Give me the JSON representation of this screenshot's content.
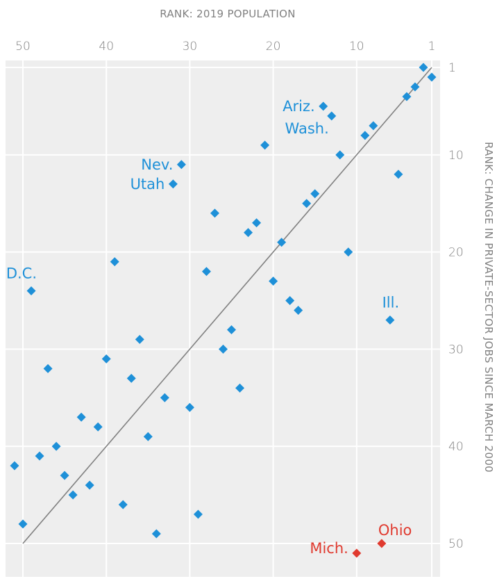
{
  "chart_data": {
    "type": "scatter",
    "title": "",
    "xlabel": "RANK: 2019 POPULATION",
    "ylabel": "RANK: CHANGE IN PRIVATE-SECTOR JOBS SINCE MARCH 2000",
    "xlim": [
      51.5,
      0.5
    ],
    "ylim": [
      0.5,
      51.5
    ],
    "x_ticks": [
      "50",
      "40",
      "30",
      "20",
      "10",
      "1"
    ],
    "y_ticks": [
      "1",
      "10",
      "20",
      "30",
      "40",
      "50"
    ],
    "grid": true,
    "reference_line": {
      "from": [
        50,
        50
      ],
      "to": [
        1,
        1
      ]
    },
    "colors": {
      "default": "#1e90d8",
      "highlight": "#e03a2f",
      "line": "#808080",
      "background": "#eeeeee",
      "grid": "#ffffff"
    },
    "points": [
      {
        "x": 2,
        "y": 1
      },
      {
        "x": 1,
        "y": 2
      },
      {
        "x": 3,
        "y": 3
      },
      {
        "x": 4,
        "y": 4
      },
      {
        "x": 14,
        "y": 5,
        "label": "Ariz."
      },
      {
        "x": 13,
        "y": 6,
        "label": "Wash."
      },
      {
        "x": 8,
        "y": 7
      },
      {
        "x": 9,
        "y": 8
      },
      {
        "x": 21,
        "y": 9
      },
      {
        "x": 12,
        "y": 10
      },
      {
        "x": 31,
        "y": 11,
        "label": "Nev."
      },
      {
        "x": 5,
        "y": 12
      },
      {
        "x": 32,
        "y": 13,
        "label": "Utah"
      },
      {
        "x": 15,
        "y": 14
      },
      {
        "x": 16,
        "y": 15
      },
      {
        "x": 27,
        "y": 16
      },
      {
        "x": 22,
        "y": 17
      },
      {
        "x": 23,
        "y": 18
      },
      {
        "x": 19,
        "y": 19
      },
      {
        "x": 11,
        "y": 20
      },
      {
        "x": 39,
        "y": 21
      },
      {
        "x": 28,
        "y": 22
      },
      {
        "x": 20,
        "y": 23
      },
      {
        "x": 49,
        "y": 24,
        "label": "D.C."
      },
      {
        "x": 18,
        "y": 25
      },
      {
        "x": 17,
        "y": 26
      },
      {
        "x": 6,
        "y": 27,
        "label": "Ill."
      },
      {
        "x": 25,
        "y": 28
      },
      {
        "x": 36,
        "y": 29
      },
      {
        "x": 26,
        "y": 30
      },
      {
        "x": 40,
        "y": 31
      },
      {
        "x": 47,
        "y": 32
      },
      {
        "x": 37,
        "y": 33
      },
      {
        "x": 24,
        "y": 34
      },
      {
        "x": 33,
        "y": 35
      },
      {
        "x": 30,
        "y": 36
      },
      {
        "x": 43,
        "y": 37
      },
      {
        "x": 41,
        "y": 38
      },
      {
        "x": 35,
        "y": 39
      },
      {
        "x": 46,
        "y": 40
      },
      {
        "x": 48,
        "y": 41
      },
      {
        "x": 51,
        "y": 42
      },
      {
        "x": 45,
        "y": 43
      },
      {
        "x": 42,
        "y": 44
      },
      {
        "x": 44,
        "y": 45
      },
      {
        "x": 38,
        "y": 46
      },
      {
        "x": 29,
        "y": 47
      },
      {
        "x": 50,
        "y": 48
      },
      {
        "x": 34,
        "y": 49
      },
      {
        "x": 7,
        "y": 50,
        "label": "Ohio",
        "highlight": true
      },
      {
        "x": 10,
        "y": 51,
        "label": "Mich.",
        "highlight": true
      }
    ]
  }
}
